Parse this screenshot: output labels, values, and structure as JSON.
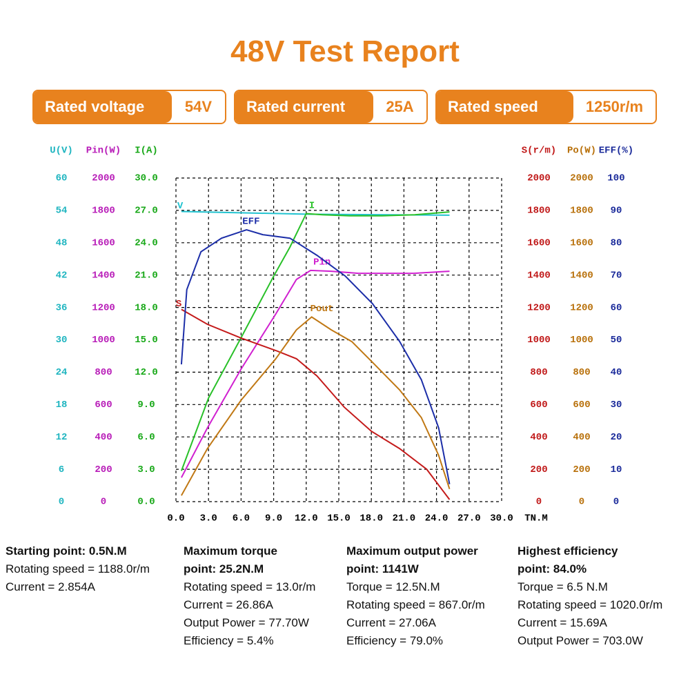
{
  "header": {
    "title": "48V Test Report",
    "badges": [
      {
        "label": "Rated voltage",
        "value": "54V"
      },
      {
        "label": "Rated current",
        "value": "25A"
      },
      {
        "label": "Rated speed",
        "value": "1250r/m"
      }
    ]
  },
  "chart_data": {
    "type": "line",
    "xlim": [
      0,
      30
    ],
    "xticks": [
      {
        "value": 0,
        "label": "0.0"
      },
      {
        "value": 3,
        "label": "3.0"
      },
      {
        "value": 6,
        "label": "6.0"
      },
      {
        "value": 9,
        "label": "9.0"
      },
      {
        "value": 12,
        "label": "12.0"
      },
      {
        "value": 15,
        "label": "15.0"
      },
      {
        "value": 18,
        "label": "18.0"
      },
      {
        "value": 21,
        "label": "21.0"
      },
      {
        "value": 24,
        "label": "24.0"
      },
      {
        "value": 27,
        "label": "27.0"
      },
      {
        "value": 30,
        "label": "30.0"
      }
    ],
    "xlabel": "TN.M",
    "grid": true,
    "y_axes": [
      {
        "title": "U(V)",
        "color": "#1fb5c0",
        "side": "left",
        "ylim": [
          0,
          60
        ],
        "yticks": [
          0,
          6,
          12,
          18,
          24,
          30,
          36,
          42,
          48,
          54,
          60
        ],
        "series": [
          {
            "name": "V",
            "color": "#22c3d0",
            "x": [
              0.5,
              12,
              25.2
            ],
            "values": [
              53.8,
              53.3,
              53.1
            ]
          }
        ]
      },
      {
        "title": "Pin(W)",
        "color": "#b81cb8",
        "side": "left",
        "ylim": [
          0,
          2000
        ],
        "yticks": [
          0,
          200,
          400,
          600,
          800,
          1000,
          1200,
          1400,
          1600,
          1800,
          2000
        ],
        "series": [
          {
            "name": "Pin",
            "color": "#d020d0",
            "x": [
              0.5,
              2.9,
              6,
              9.2,
              11.1,
              12.4,
              14.3,
              16.8,
              21.9,
              25.2
            ],
            "values": [
              149,
              456,
              819,
              1160,
              1373,
              1429,
              1424,
              1411,
              1411,
              1424
            ]
          }
        ]
      },
      {
        "title": "I(A)",
        "color": "#18a818",
        "side": "left",
        "ylim": [
          0,
          30
        ],
        "yticks": [
          {
            "value": 0,
            "label": "0.0"
          },
          {
            "value": 3,
            "label": "3.0"
          },
          {
            "value": 6,
            "label": "6.0"
          },
          {
            "value": 9,
            "label": "9.0"
          },
          {
            "value": 12,
            "label": "12.0"
          },
          {
            "value": 15,
            "label": "15.0"
          },
          {
            "value": 18,
            "label": "18.0"
          },
          {
            "value": 21,
            "label": "21.0"
          },
          {
            "value": 24,
            "label": "24.0"
          },
          {
            "value": 27,
            "label": "27.0"
          },
          {
            "value": 30,
            "label": "30.0"
          }
        ],
        "series": [
          {
            "name": "I",
            "color": "#28c028",
            "x": [
              0.5,
              3,
              6,
              9,
              10.5,
              12,
              13.5,
              16,
              19,
              22,
              25.2
            ],
            "values": [
              2.85,
              9.6,
              15.2,
              20.9,
              23.6,
              26.7,
              26.6,
              26.5,
              26.5,
              26.6,
              26.86
            ]
          }
        ]
      },
      {
        "title": "S(r/m)",
        "color": "#c01818",
        "side": "right",
        "ylim": [
          0,
          2000
        ],
        "yticks": [
          0,
          200,
          400,
          600,
          800,
          1000,
          1200,
          1400,
          1600,
          1800,
          2000
        ],
        "series": [
          {
            "name": "S",
            "color": "#c41a1a",
            "x": [
              0.5,
              2.9,
              6,
              9.2,
              11.1,
              13,
              15.5,
              18,
              20.6,
              23.1,
              25.2
            ],
            "values": [
              1188,
              1096,
              1011,
              934,
              883,
              776,
              584,
              435,
              328,
              200,
              13
            ]
          }
        ]
      },
      {
        "title": "Po(W)",
        "color": "#b8700a",
        "side": "right",
        "ylim": [
          0,
          2000
        ],
        "yticks": [
          0,
          200,
          400,
          600,
          800,
          1000,
          1200,
          1400,
          1600,
          1800,
          2000
        ],
        "series": [
          {
            "name": "Pout",
            "color": "#c07814",
            "x": [
              0.5,
              2.9,
              6,
              9.2,
              11.1,
              12.5,
              14.3,
              16.2,
              18.1,
              20.6,
              22.6,
              24.2,
              25.2
            ],
            "values": [
              38,
              328,
              627,
              883,
              1062,
              1141,
              1062,
              989,
              861,
              691,
              520,
              286,
              78
            ]
          }
        ]
      },
      {
        "title": "EFF(%)",
        "color": "#1a2a9a",
        "side": "right",
        "ylim": [
          0,
          100
        ],
        "yticks": [
          0,
          10,
          20,
          30,
          40,
          50,
          60,
          70,
          80,
          90,
          100
        ],
        "series": [
          {
            "name": "EFF",
            "color": "#1c2ea8",
            "x": [
              0.5,
              1,
              2.3,
              4.2,
              6.5,
              8,
              10.5,
              13,
              15.6,
              18.1,
              20.6,
              22.6,
              24.2,
              25.2
            ],
            "values": [
              42.4,
              65.5,
              77.2,
              81.4,
              84,
              82.5,
              81.4,
              76.1,
              69.7,
              61.2,
              49.5,
              37.7,
              22.8,
              5.4
            ]
          }
        ]
      }
    ]
  },
  "notes": [
    {
      "title": "Starting point: 0.5N.M",
      "lines": [
        "Rotating speed = 1188.0r/m",
        "Current = 2.854A"
      ]
    },
    {
      "title": "Maximum torque point: 25.2N.M",
      "lines": [
        "Rotating speed = 13.0r/m",
        "Current = 26.86A",
        "Output Power = 77.70W",
        "Efficiency = 5.4%"
      ]
    },
    {
      "title": "Maximum output power point: 1141W",
      "lines": [
        "Torque = 12.5N.M",
        "Rotating speed = 867.0r/m",
        "Current = 27.06A",
        "Efficiency = 79.0%"
      ]
    },
    {
      "title": "Highest efficiency point: 84.0%",
      "lines": [
        "Torque = 6.5 N.M",
        "Rotating speed = 1020.0r/m",
        "Current = 15.69A",
        "Output Power = 703.0W"
      ]
    }
  ]
}
